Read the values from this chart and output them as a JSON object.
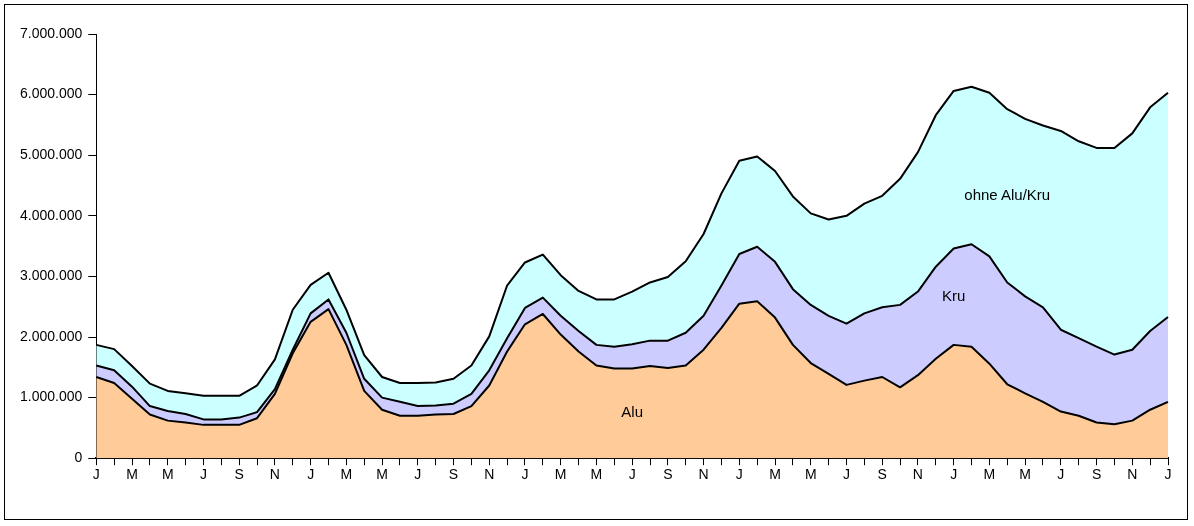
{
  "chart_data": {
    "type": "area",
    "stacked": true,
    "legend": false,
    "grid": false,
    "categories": [
      "J",
      null,
      "M",
      null,
      "M",
      null,
      "J",
      null,
      "S",
      null,
      "N",
      null,
      "J",
      null,
      "M",
      null,
      "M",
      null,
      "J",
      null,
      "S",
      null,
      "N",
      null,
      "J",
      null,
      "M",
      null,
      "M",
      null,
      "J",
      null,
      "S",
      null,
      "N",
      null,
      "J",
      null,
      "M",
      null,
      "M",
      null,
      "J",
      null,
      "S",
      null,
      "N",
      null,
      "J",
      null,
      "M",
      null,
      "M",
      null,
      "J",
      null,
      "S",
      null,
      "N",
      null,
      "J"
    ],
    "ylim": [
      0,
      7000000
    ],
    "yticks": [
      0,
      {
        "value": 1000000,
        "label": "1.000.000"
      },
      {
        "value": 2000000,
        "label": "2.000.000"
      },
      {
        "value": 3000000,
        "label": "3.000.000"
      },
      {
        "value": 4000000,
        "label": "4.000.000"
      },
      {
        "value": 5000000,
        "label": "5.000.000"
      },
      {
        "value": 6000000,
        "label": "6.000.000"
      },
      {
        "value": 7000000,
        "label": "7.000.000"
      }
    ],
    "series": [
      {
        "name": "Alu",
        "color": "#ffcc99",
        "values": [
          1340000,
          1240000,
          980000,
          720000,
          620000,
          590000,
          550000,
          550000,
          550000,
          660000,
          1060000,
          1730000,
          2250000,
          2460000,
          1870000,
          1110000,
          800000,
          700000,
          700000,
          720000,
          730000,
          860000,
          1200000,
          1760000,
          2210000,
          2380000,
          2040000,
          1760000,
          1530000,
          1480000,
          1480000,
          1520000,
          1490000,
          1530000,
          1790000,
          2150000,
          2550000,
          2590000,
          2320000,
          1870000,
          1570000,
          1390000,
          1210000,
          1280000,
          1340000,
          1170000,
          1370000,
          1640000,
          1870000,
          1840000,
          1560000,
          1220000,
          1070000,
          930000,
          770000,
          700000,
          590000,
          560000,
          620000,
          800000,
          930000
        ]
      },
      {
        "name": "Kru",
        "color": "#ccccff",
        "values": [
          190000,
          210000,
          200000,
          140000,
          160000,
          140000,
          90000,
          90000,
          120000,
          100000,
          80000,
          60000,
          140000,
          160000,
          200000,
          200000,
          200000,
          230000,
          160000,
          150000,
          170000,
          200000,
          250000,
          220000,
          270000,
          270000,
          310000,
          340000,
          340000,
          360000,
          400000,
          420000,
          450000,
          540000,
          560000,
          700000,
          820000,
          900000,
          920000,
          920000,
          960000,
          960000,
          1010000,
          1110000,
          1150000,
          1360000,
          1380000,
          1520000,
          1590000,
          1690000,
          1770000,
          1680000,
          1600000,
          1560000,
          1350000,
          1280000,
          1250000,
          1150000,
          1170000,
          1300000,
          1400000
        ]
      },
      {
        "name": "ohne Alu/Kru",
        "color": "#ccffff",
        "values": [
          340000,
          350000,
          340000,
          370000,
          330000,
          340000,
          390000,
          390000,
          360000,
          440000,
          490000,
          660000,
          470000,
          440000,
          380000,
          390000,
          340000,
          310000,
          380000,
          380000,
          410000,
          470000,
          560000,
          870000,
          750000,
          710000,
          670000,
          660000,
          750000,
          780000,
          870000,
          960000,
          1050000,
          1180000,
          1350000,
          1520000,
          1540000,
          1490000,
          1500000,
          1530000,
          1510000,
          1590000,
          1780000,
          1810000,
          1840000,
          2080000,
          2300000,
          2500000,
          2600000,
          2600000,
          2700000,
          2860000,
          2930000,
          3000000,
          3280000,
          3250000,
          3280000,
          3410000,
          3570000,
          3690000,
          3700000
        ]
      }
    ]
  }
}
